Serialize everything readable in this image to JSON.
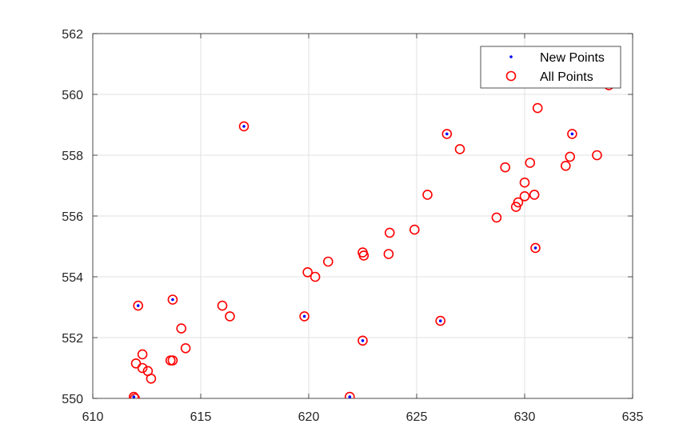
{
  "chart_data": {
    "type": "scatter",
    "title": "",
    "xlabel": "",
    "ylabel": "",
    "xlim": [
      610,
      635
    ],
    "ylim": [
      550,
      562
    ],
    "xticks": [
      610,
      615,
      620,
      625,
      630,
      635
    ],
    "yticks": [
      550,
      552,
      554,
      556,
      558,
      560,
      562
    ],
    "grid": true,
    "legend_position": "top-right",
    "colors": {
      "new_points": "#0000ff",
      "all_points": "#ff0000",
      "grid": "#e0e0e0",
      "axis": "#262626"
    },
    "series": [
      {
        "name": "New Points",
        "marker": "dot",
        "points": [
          [
            612.1,
            553.05
          ],
          [
            613.7,
            553.25
          ],
          [
            617.0,
            558.95
          ],
          [
            619.8,
            552.7
          ],
          [
            622.5,
            551.9
          ],
          [
            621.9,
            550.05
          ],
          [
            626.1,
            552.55
          ],
          [
            626.4,
            558.7
          ],
          [
            630.5,
            554.95
          ],
          [
            632.2,
            558.7
          ],
          [
            611.9,
            550.05
          ]
        ]
      },
      {
        "name": "All Points",
        "marker": "circle",
        "points": [
          [
            611.9,
            550.05
          ],
          [
            611.95,
            550.0
          ],
          [
            612.0,
            551.15
          ],
          [
            612.1,
            553.05
          ],
          [
            612.3,
            551.45
          ],
          [
            612.3,
            551.0
          ],
          [
            612.55,
            550.9
          ],
          [
            612.7,
            550.65
          ],
          [
            613.6,
            551.25
          ],
          [
            613.7,
            551.25
          ],
          [
            613.7,
            553.25
          ],
          [
            614.1,
            552.3
          ],
          [
            614.3,
            551.65
          ],
          [
            616.0,
            553.05
          ],
          [
            616.35,
            552.7
          ],
          [
            617.0,
            558.95
          ],
          [
            619.8,
            552.7
          ],
          [
            619.95,
            554.15
          ],
          [
            620.3,
            554.0
          ],
          [
            620.9,
            554.5
          ],
          [
            621.9,
            550.05
          ],
          [
            622.5,
            554.8
          ],
          [
            622.55,
            554.7
          ],
          [
            622.5,
            551.9
          ],
          [
            623.7,
            554.75
          ],
          [
            623.75,
            555.45
          ],
          [
            624.9,
            555.55
          ],
          [
            625.5,
            556.7
          ],
          [
            626.1,
            552.55
          ],
          [
            626.4,
            558.7
          ],
          [
            627.0,
            558.2
          ],
          [
            628.7,
            555.95
          ],
          [
            629.1,
            557.6
          ],
          [
            629.6,
            556.3
          ],
          [
            629.7,
            556.45
          ],
          [
            630.0,
            557.1
          ],
          [
            630.0,
            556.65
          ],
          [
            630.25,
            557.75
          ],
          [
            630.45,
            556.7
          ],
          [
            630.5,
            554.95
          ],
          [
            630.6,
            559.55
          ],
          [
            631.9,
            557.65
          ],
          [
            632.1,
            557.95
          ],
          [
            632.2,
            558.7
          ],
          [
            633.35,
            558.0
          ],
          [
            633.9,
            560.3
          ]
        ]
      }
    ]
  }
}
